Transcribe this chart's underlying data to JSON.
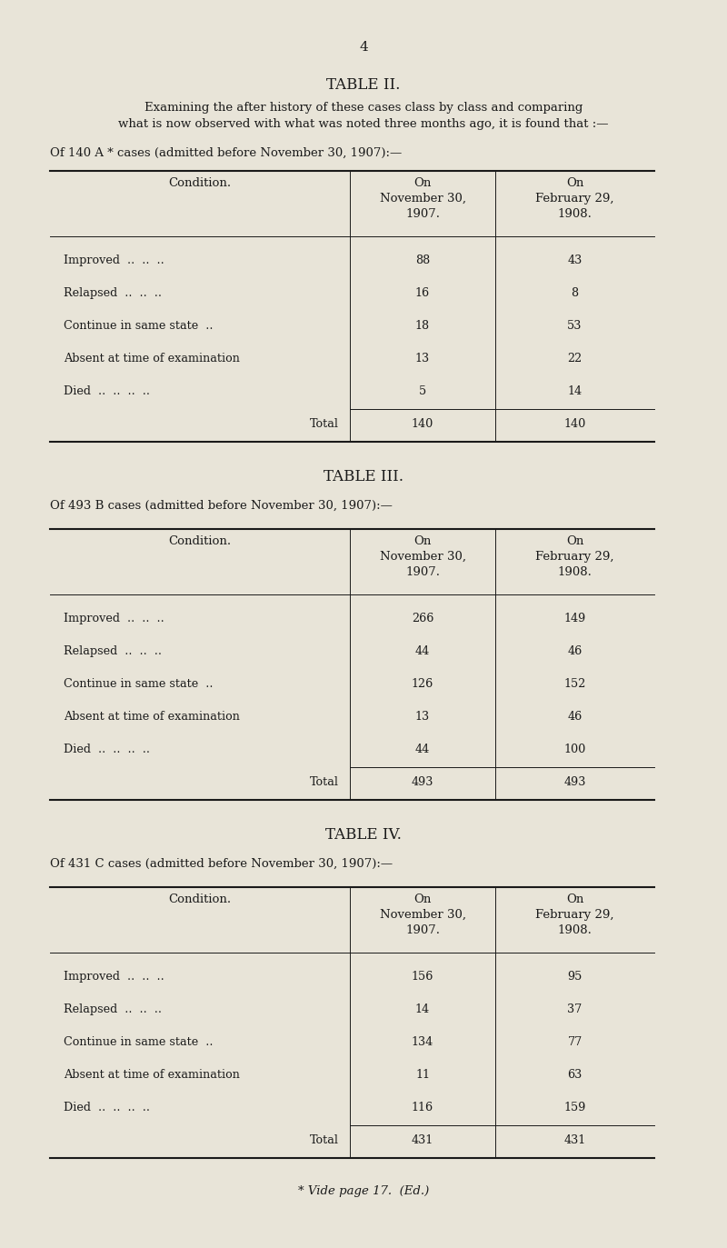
{
  "page_number": "4",
  "bg_color": "#e8e4d8",
  "text_color": "#1a1a1a",
  "table2": {
    "title": "TABLE II.",
    "subtitle": "Examining the after history of these cases class by class and comparing\nwhat is now observed with what was noted three months ago, it is found that :—",
    "subheading": "Of 140 A * cases (admitted before November 30, 1907):—",
    "col_headers": [
      "Condition.",
      "On\nNovember 30,\n1907.",
      "On\nFebruary 29,\n1908."
    ],
    "rows": [
      [
        "Improved  ..  ..  ..",
        "88",
        "43"
      ],
      [
        "Relapsed  ..  ..  ..",
        "16",
        "8"
      ],
      [
        "Continue in same state  ..",
        "18",
        "53"
      ],
      [
        "Absent at time of examination",
        "13",
        "22"
      ],
      [
        "Died  ..  ..  ..  ..",
        "5",
        "14"
      ]
    ],
    "total_row": [
      "Total",
      "140",
      "140"
    ]
  },
  "table3": {
    "title": "TABLE III.",
    "subheading": "Of 493 B cases (admitted before November 30, 1907):—",
    "col_headers": [
      "Condition.",
      "On\nNovember 30,\n1907.",
      "On\nFebruary 29,\n1908."
    ],
    "rows": [
      [
        "Improved  ..  ..  ..",
        "266",
        "149"
      ],
      [
        "Relapsed  ..  ..  ..",
        "44",
        "46"
      ],
      [
        "Continue in same state  ..",
        "126",
        "152"
      ],
      [
        "Absent at time of examination",
        "13",
        "46"
      ],
      [
        "Died  ..  ..  ..  ..",
        "44",
        "100"
      ]
    ],
    "total_row": [
      "Total",
      "493",
      "493"
    ]
  },
  "table4": {
    "title": "TABLE IV.",
    "subheading": "Of 431 C cases (admitted before November 30, 1907):—",
    "col_headers": [
      "Condition.",
      "On\nNovember 30,\n1907.",
      "On\nFebruary 29,\n1908."
    ],
    "rows": [
      [
        "Improved  ..  ..  ..",
        "156",
        "95"
      ],
      [
        "Relapsed  ..  ..  ..",
        "14",
        "37"
      ],
      [
        "Continue in same state  ..",
        "134",
        "77"
      ],
      [
        "Absent at time of examination",
        "11",
        "63"
      ],
      [
        "Died  ..  ..  ..  ..",
        "116",
        "159"
      ]
    ],
    "total_row": [
      "Total",
      "431",
      "431"
    ]
  },
  "footnote": "* Vide page 17.  (Ed.)"
}
